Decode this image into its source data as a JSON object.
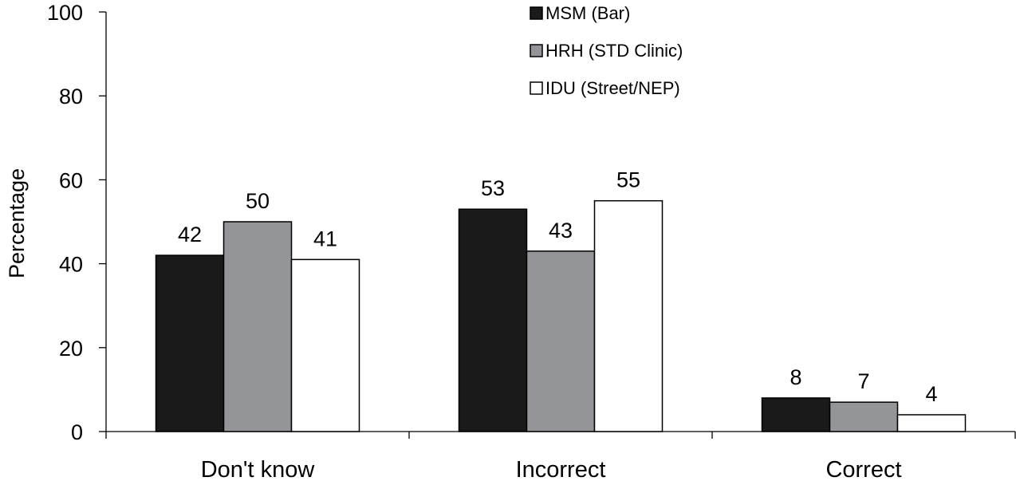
{
  "chart_data": {
    "type": "bar",
    "title": "",
    "xlabel": "",
    "ylabel": "Percentage",
    "ylim": [
      0,
      100
    ],
    "yticks": [
      0,
      20,
      40,
      60,
      80,
      100
    ],
    "grid": false,
    "legend_position": "top-center",
    "categories": [
      "Don't know",
      "Incorrect",
      "Correct"
    ],
    "series": [
      {
        "name": "MSM (Bar)",
        "values": [
          42,
          53,
          8
        ],
        "color": "#1a1a1a"
      },
      {
        "name": "HRH (STD Clinic)",
        "values": [
          50,
          43,
          7
        ],
        "color": "#939598"
      },
      {
        "name": "IDU (Street/NEP)",
        "values": [
          41,
          55,
          4
        ],
        "color": "#ffffff"
      }
    ]
  }
}
